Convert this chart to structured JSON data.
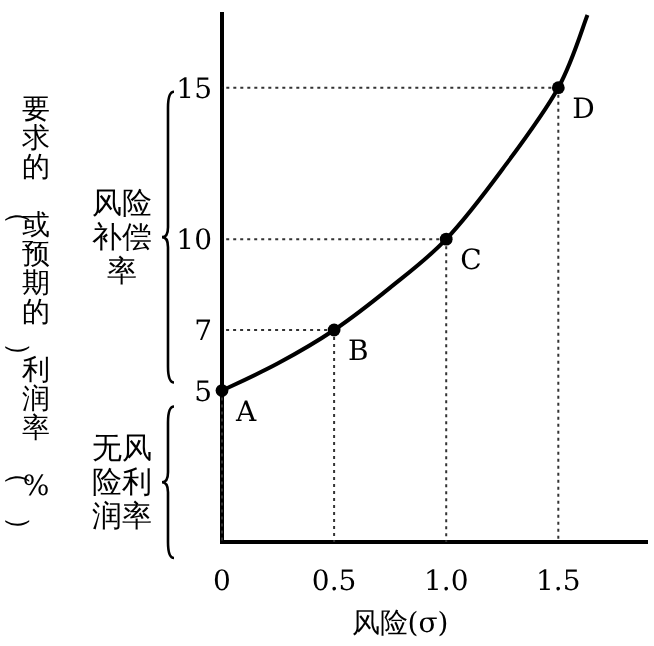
{
  "chart_data": {
    "type": "line",
    "xlabel": "风险(σ)",
    "ylabel": "要求的（或预期的）利润率（%）",
    "series": [
      {
        "color": "#000000",
        "x": [
          0,
          0.25,
          0.5,
          0.75,
          1,
          1.25,
          1.5,
          1.63
        ],
        "values": [
          5,
          5.9,
          7,
          8.4,
          10,
          12.3,
          15,
          17.4
        ]
      },
      {
        "type": "scatter",
        "color": "#000000",
        "x": [
          0,
          0.5,
          1,
          1.5
        ],
        "values": [
          5,
          7,
          10,
          15
        ],
        "marker": "circle",
        "line_style": "dotted"
      }
    ],
    "xlim": [
      0,
      1.9
    ],
    "ylim": [
      0,
      17.5
    ],
    "xticks": [
      0,
      0.5,
      {
        "value": 1,
        "label": "1.0"
      },
      1.5
    ],
    "yticks": [
      5,
      7,
      10,
      15
    ],
    "annotations": [
      {
        "text": "A",
        "x": 0,
        "y": 5
      },
      {
        "text": "B",
        "x": 0.5,
        "y": 7
      },
      {
        "text": "C",
        "x": 1,
        "y": 10
      },
      {
        "text": "D",
        "x": 1.5,
        "y": 15
      },
      "风险补偿率",
      "无风险利润率"
    ],
    "marker": "none"
  }
}
